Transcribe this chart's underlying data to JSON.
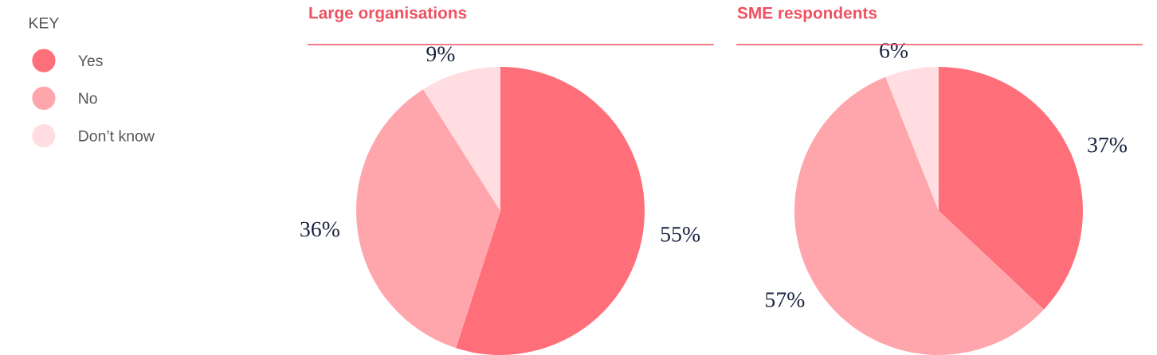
{
  "chart_data": [
    {
      "type": "pie",
      "title": "Large organisations",
      "legend_title": "KEY",
      "legend": "left",
      "categories": [
        "Yes",
        "No",
        "Don’t know"
      ],
      "values": [
        55,
        36,
        9
      ],
      "colors": [
        "#ff6f7a",
        "#ffa6ad",
        "#ffdde0"
      ],
      "value_labels": [
        "55%",
        "36%",
        "9%"
      ]
    },
    {
      "type": "pie",
      "title": "SME respondents",
      "categories": [
        null,
        null,
        null
      ],
      "values": [
        37,
        57,
        6
      ],
      "colors": [
        "#ff6f7a",
        "#ffa6ad",
        "#ffdde0"
      ],
      "value_labels": [
        "37%",
        "57%",
        "6%"
      ]
    }
  ]
}
